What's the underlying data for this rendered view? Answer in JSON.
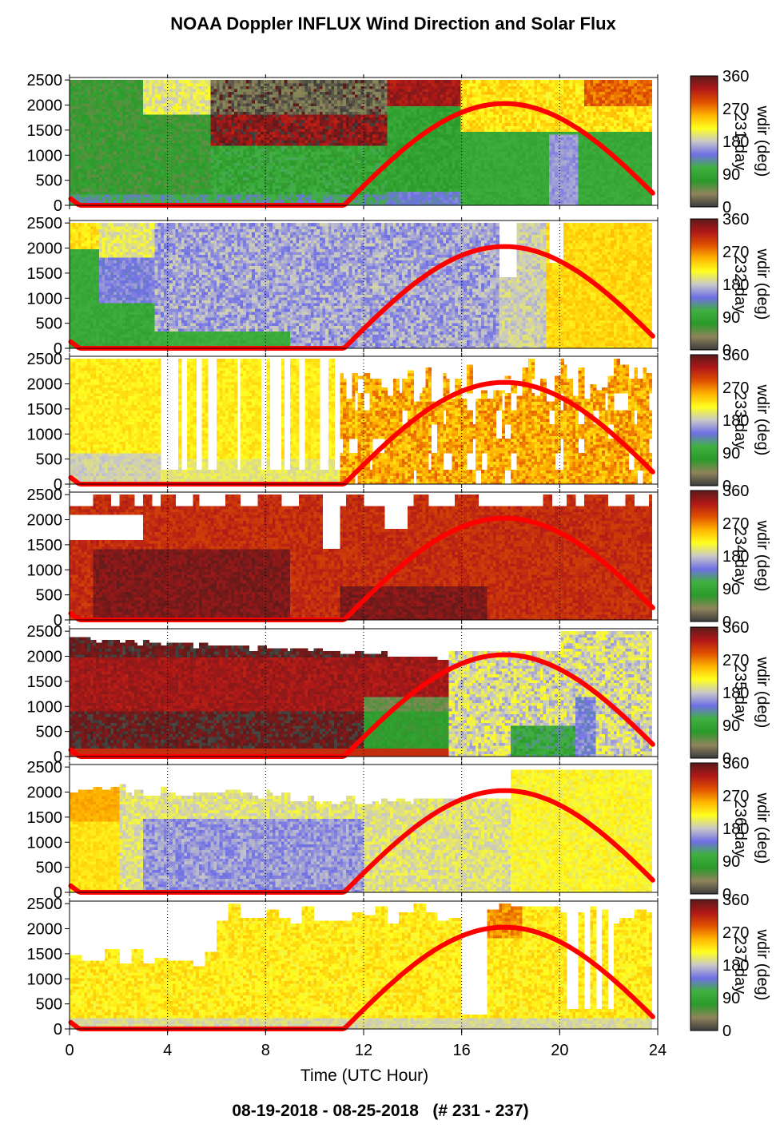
{
  "title": "NOAA Doppler INFLUX Wind Direction and Solar Flux",
  "xlabel": "Time (UTC Hour)",
  "footer": "08-19-2018 - 08-25-2018   (# 231 - 237)",
  "colors": {
    "solar_curve": "#ff0000",
    "colormap": [
      "#3b3b3b",
      "#8f845c",
      "#2a9a2a",
      "#40b040",
      "#6f6fe6",
      "#c8c8c8",
      "#ffff20",
      "#ffb400",
      "#e05000",
      "#b01818",
      "#5a1a1a"
    ]
  },
  "chart_data": {
    "type": "heatmap",
    "x_ticks": [
      "0",
      "4",
      "8",
      "12",
      "16",
      "20",
      "24"
    ],
    "xlim": [
      0,
      24
    ],
    "y_ticks": [
      "0",
      "500",
      "1000",
      "1500",
      "2000",
      "2500"
    ],
    "ylim": [
      0,
      2550
    ],
    "grid": "vertical dotted lines at 4-hour intervals",
    "colorbar": {
      "ticks": [
        "0",
        "90",
        "180",
        "270",
        "360"
      ],
      "range": [
        0,
        360
      ]
    },
    "solar_curve": {
      "color": "red",
      "sunrise_hour": 11.2,
      "sunset_hour": 24.3,
      "peak_hour": 17.8,
      "peak_value_on_y_axis": 2030
    },
    "panels": [
      {
        "day_label": "231-day",
        "dominant_wind_direction_deg": "90-120 (green/olive) low, 320-360 (dark) aloft early; 200-280 aloft after 15 UTC"
      },
      {
        "day_label": "232-day",
        "dominant_wind_direction_deg": "80-110 (green) early low levels, 150-200 (blue/grey) most of day, 230-250 (yellow) after 19 UTC"
      },
      {
        "day_label": "233-day",
        "dominant_wind_direction_deg": "200-250 (grey/yellow) until 11 UTC, 260-300 (orange) afterward"
      },
      {
        "day_label": "234-day",
        "dominant_wind_direction_deg": "300-360 (red/dark red) all day"
      },
      {
        "day_label": "235-day",
        "dominant_wind_direction_deg": "320-360 (dark red/black) until 15 UTC, 150-250 (grey/yellow) afterward"
      },
      {
        "day_label": "236-day",
        "dominant_wind_direction_deg": "150-200 (blue/grey) mid-levels, 240-260 (yellow/orange) upper and late"
      },
      {
        "day_label": "237-day",
        "dominant_wind_direction_deg": "200-260 (grey/yellow) most of day"
      }
    ]
  },
  "colorbar_label_parts": [
    "wdir (deg)"
  ]
}
